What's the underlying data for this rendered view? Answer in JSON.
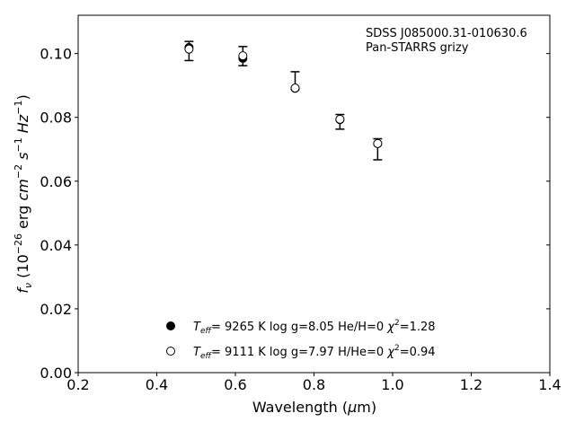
{
  "chart_data": {
    "type": "scatter",
    "annotation": [
      "SDSS J085000.31-010630.6",
      "Pan-STARRS grizy"
    ],
    "xlabel": {
      "pre": "Wavelength (",
      "mu": "μ",
      "post": "m)"
    },
    "ylabel": {
      "f": "f",
      "nu": "ν",
      "rest": " (10",
      "exp1": "−26",
      "erg": " erg ",
      "cm": "cm",
      "exp2": "−2",
      "s": " s",
      "exp3": "−1",
      "hz": " Hz",
      "exp4": "−1",
      "close": ")"
    },
    "xlim": [
      0.2,
      1.4
    ],
    "ylim": [
      0.0,
      0.112
    ],
    "xticks": [
      0.2,
      0.4,
      0.6,
      0.8,
      1.0,
      1.2,
      1.4
    ],
    "yticks": [
      0.0,
      0.02,
      0.04,
      0.06,
      0.08,
      0.1
    ],
    "xtick_labels": [
      "0.2",
      "0.4",
      "0.6",
      "0.8",
      "1.0",
      "1.2",
      "1.4"
    ],
    "ytick_labels": [
      "0.00",
      "0.02",
      "0.04",
      "0.06",
      "0.08",
      "0.10"
    ],
    "observed": {
      "x": [
        0.482,
        0.619,
        0.752,
        0.866,
        0.962
      ],
      "y": [
        0.1008,
        0.0992,
        0.0893,
        0.0786,
        0.07
      ],
      "yerr_low": [
        0.003,
        0.003,
        0.0005,
        0.0023,
        0.0033
      ],
      "yerr_high": [
        0.003,
        0.003,
        0.005,
        0.0023,
        0.0033
      ]
    },
    "series": [
      {
        "marker": "filled",
        "x": [
          0.482,
          0.619,
          0.752,
          0.866,
          0.962
        ],
        "y": [
          0.1019,
          0.0985,
          0.0891,
          0.0793,
          0.0718
        ],
        "legend": {
          "teff": "T",
          "eff": "eff",
          "teff_val": "=  9265 K  log g=8.05  He/H=0  ",
          "chi": "χ",
          "two": "2",
          "chi_val": "=1.28"
        }
      },
      {
        "marker": "open",
        "x": [
          0.482,
          0.619,
          0.752,
          0.866,
          0.962
        ],
        "y": [
          0.1014,
          0.0993,
          0.0892,
          0.0794,
          0.0718
        ],
        "legend": {
          "teff": "T",
          "eff": "eff",
          "teff_val": "=  9111 K  log g=7.97  H/He=0  ",
          "chi": "χ",
          "two": "2",
          "chi_val": "=0.94"
        }
      }
    ],
    "colors": {
      "marker": "#000000",
      "axes": "#000000",
      "background": "#ffffff"
    },
    "legend_placement": "lower-center",
    "annotation_placement": "top-right",
    "grid": false
  }
}
